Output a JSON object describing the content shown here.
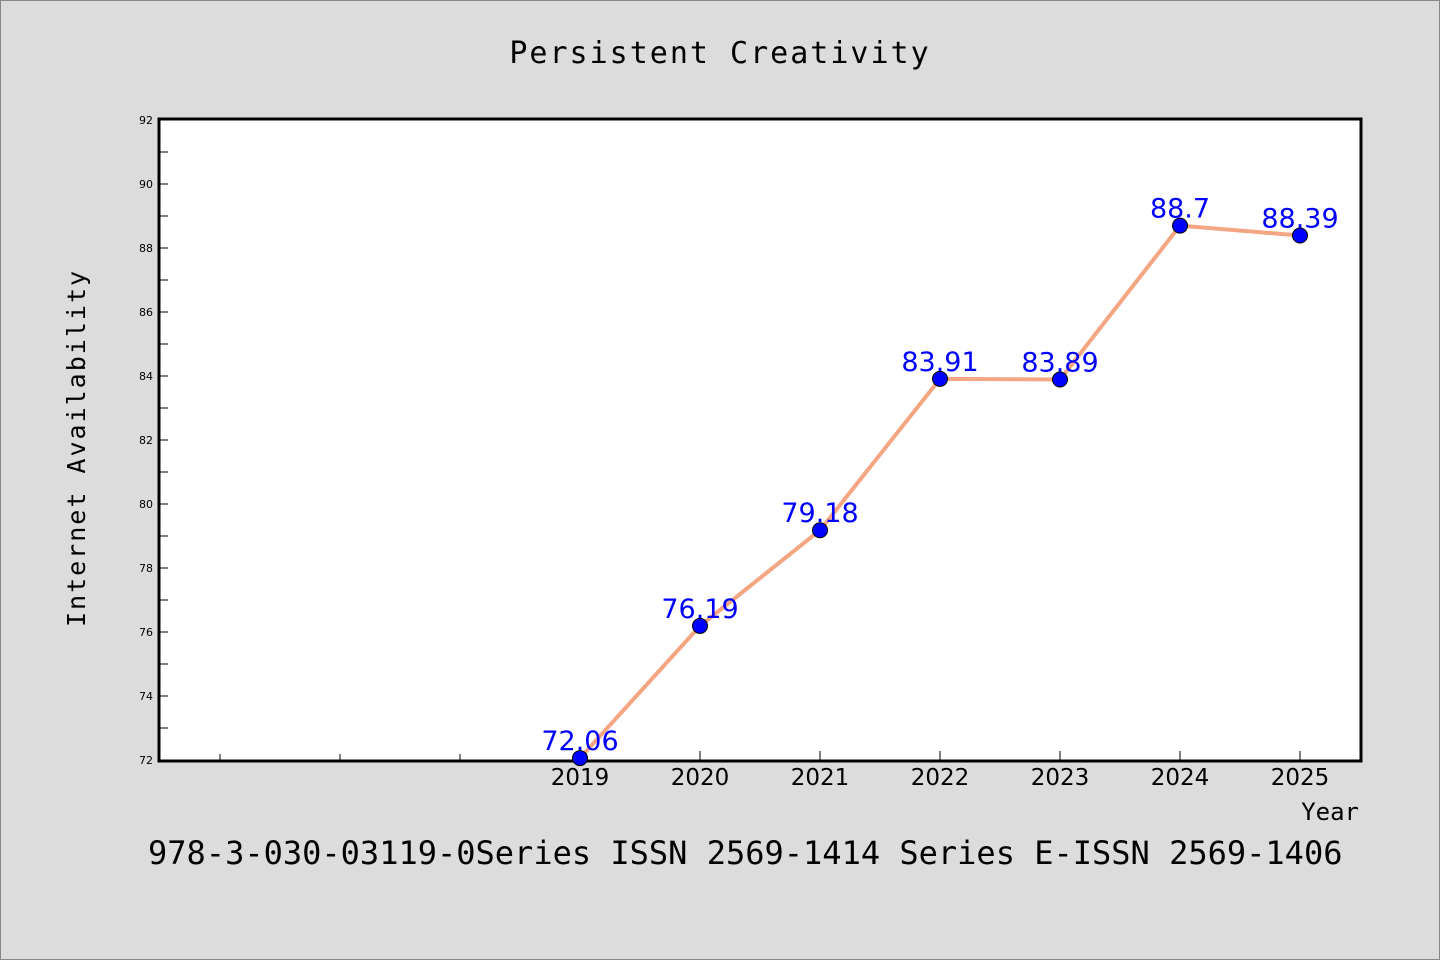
{
  "chart_data": {
    "type": "line",
    "title": "Persistent Creativity",
    "xlabel": "Year",
    "ylabel": "Internet Availability",
    "categories": [
      "2019",
      "2020",
      "2021",
      "2022",
      "2023",
      "2024",
      "2025"
    ],
    "series": [
      {
        "values": [
          72.06,
          76.19,
          79.18,
          83.91,
          83.89,
          88.7,
          88.39
        ],
        "data_labels": [
          "72.06",
          "76.19",
          "79.18",
          "83.91",
          "83.89",
          "88.7",
          "88.39"
        ]
      }
    ],
    "ylim": [
      72,
      92
    ],
    "yticks": [
      "72",
      "74",
      "76",
      "78",
      "80",
      "82",
      "84",
      "86",
      "88",
      "90",
      "92"
    ],
    "grid": false,
    "colors": {
      "background": "#dcdcdc",
      "plot_area": "#ffffff",
      "line": "#f4a582",
      "marker": "#0000ff",
      "data_label": "#0000ff"
    }
  },
  "footer": {
    "text": "978-3-030-03119-0Series ISSN 2569-1414 Series E-ISSN 2569-1406"
  }
}
